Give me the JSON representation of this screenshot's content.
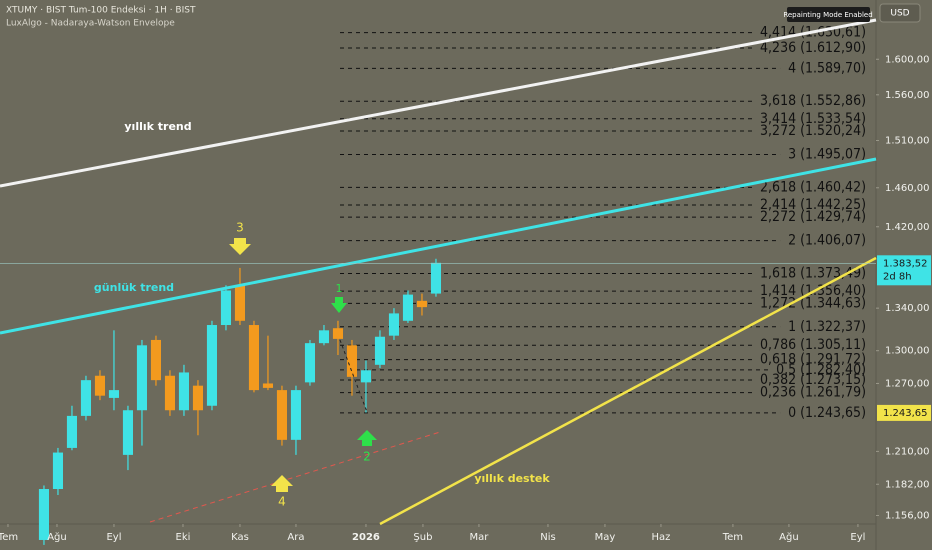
{
  "chart_data": {
    "type": "candlestick",
    "title": "XTUMY · BIST Tum-100 Endeksi · 1H · BIST",
    "subtitle": "LuxAlgo - Nadaraya-Watson Envelope",
    "badge": "Repainting Mode Enabled",
    "currency": "USD",
    "log_scale": true,
    "grid": false,
    "up_color": "#3fe3e6",
    "down_color": "#f39a1e",
    "x": [
      3,
      4,
      5,
      6,
      7,
      8,
      9,
      10,
      11,
      12,
      13,
      14,
      15,
      16,
      17,
      18,
      19,
      20,
      21,
      22,
      23,
      24,
      25,
      26,
      27,
      28,
      29,
      30,
      31
    ],
    "open": [
      1136,
      1178,
      1213,
      1241,
      1277,
      1257,
      1207,
      1246,
      1310,
      1277,
      1246,
      1268,
      1250,
      1324,
      1362,
      1324,
      1270,
      1264,
      1220,
      1271,
      1307,
      1321,
      1305,
      1271,
      1287,
      1314,
      1328,
      1347,
      1354
    ],
    "high": [
      1181,
      1213,
      1250,
      1277,
      1282,
      1319,
      1250,
      1310,
      1314,
      1282,
      1287,
      1273,
      1328,
      1362,
      1379,
      1328,
      1314,
      1268,
      1268,
      1310,
      1324,
      1328,
      1310,
      1291,
      1319,
      1340,
      1357,
      1354,
      1388
    ],
    "low": [
      1132,
      1173,
      1211,
      1237,
      1255,
      1246,
      1194,
      1215,
      1268,
      1241,
      1241,
      1224,
      1246,
      1319,
      1324,
      1262,
      1264,
      1215,
      1207,
      1268,
      1305,
      1296,
      1259,
      1244,
      1284,
      1310,
      1326,
      1333,
      1351
    ],
    "close": [
      1178,
      1209,
      1241,
      1273,
      1259,
      1264,
      1246,
      1305,
      1273,
      1246,
      1280,
      1246,
      1324,
      1357,
      1328,
      1264,
      1266,
      1220,
      1264,
      1307,
      1319,
      1311,
      1276,
      1282,
      1313,
      1335,
      1353,
      1341,
      1384
    ],
    "xlim": [
      -0.14,
      62.43
    ],
    "ylim": [
      1149,
      1669
    ],
    "xticks": [
      {
        "value": 0.43,
        "label": "Tem"
      },
      {
        "value": 3.93,
        "label": "Ağu"
      },
      {
        "value": 8,
        "label": "Eyl"
      },
      {
        "value": 12.93,
        "label": "Eki"
      },
      {
        "value": 17,
        "label": "Kas"
      },
      {
        "value": 21,
        "label": "Ara"
      },
      {
        "value": 26,
        "label": "2026"
      },
      {
        "value": 30.07,
        "label": "Şub"
      },
      {
        "value": 34.07,
        "label": "Mar"
      },
      {
        "value": 39,
        "label": "Nis"
      },
      {
        "value": 43.07,
        "label": "May"
      },
      {
        "value": 47.07,
        "label": "Haz"
      },
      {
        "value": 52.21,
        "label": "Tem"
      },
      {
        "value": 56.21,
        "label": "Ağu"
      },
      {
        "value": 61.14,
        "label": "Eyl"
      }
    ],
    "yticks": [
      {
        "value": 1600,
        "label": "1.600,00"
      },
      {
        "value": 1560,
        "label": "1.560,00"
      },
      {
        "value": 1510,
        "label": "1.510,00"
      },
      {
        "value": 1460,
        "label": "1.460,00"
      },
      {
        "value": 1420,
        "label": "1.420,00"
      },
      {
        "value": 1340,
        "label": "1.340,00"
      },
      {
        "value": 1300,
        "label": "1.300,00"
      },
      {
        "value": 1270,
        "label": "1.270,00"
      },
      {
        "value": 1210,
        "label": "1.210,00"
      },
      {
        "value": 1182,
        "label": "1.182,00"
      },
      {
        "value": 1156,
        "label": "1.156,00"
      }
    ],
    "last_price": {
      "value": 1383.52,
      "label": "1.383,52",
      "countdown": "2d 8h"
    },
    "level_price": {
      "value": 1243.65,
      "label": "1.243,65"
    },
    "fib_levels": [
      {
        "value": 1243.65,
        "label": "0 (1.243,65)"
      },
      {
        "value": 1261.79,
        "label": "0,236 (1.261,79)"
      },
      {
        "value": 1273.15,
        "label": "0,382 (1.273,15)"
      },
      {
        "value": 1282.4,
        "label": "0,5 (1.282,40)"
      },
      {
        "value": 1291.72,
        "label": "0,618 (1.291,72)"
      },
      {
        "value": 1305.11,
        "label": "0,786 (1.305,11)"
      },
      {
        "value": 1322.37,
        "label": "1 (1.322,37)"
      },
      {
        "value": 1344.63,
        "label": "1,272 (1.344,63)"
      },
      {
        "value": 1356.4,
        "label": "1,414 (1.356,40)"
      },
      {
        "value": 1373.49,
        "label": "1,618 (1.373,49)"
      },
      {
        "value": 1406.07,
        "label": "2 (1.406,07)"
      },
      {
        "value": 1429.74,
        "label": "2,272 (1.429,74)"
      },
      {
        "value": 1442.25,
        "label": "2,414 (1.442,25)"
      },
      {
        "value": 1460.42,
        "label": "2,618 (1.460,42)"
      },
      {
        "value": 1495.07,
        "label": "3 (1.495,07)"
      },
      {
        "value": 1520.24,
        "label": "3,272 (1.520,24)"
      },
      {
        "value": 1533.54,
        "label": "3,414 (1.533,54)"
      },
      {
        "value": 1552.86,
        "label": "3,618 (1.552,86)"
      },
      {
        "value": 1589.7,
        "label": "4 (1.589,70)"
      },
      {
        "value": 1612.9,
        "label": "4,236 (1.612,90)"
      },
      {
        "value": 1630.61,
        "label": "4,414 (1.630,61)"
      }
    ],
    "annotations": [
      "yıllık trend",
      "günlük trend",
      "yıllık destek",
      "3",
      "4",
      "1",
      "2"
    ]
  }
}
